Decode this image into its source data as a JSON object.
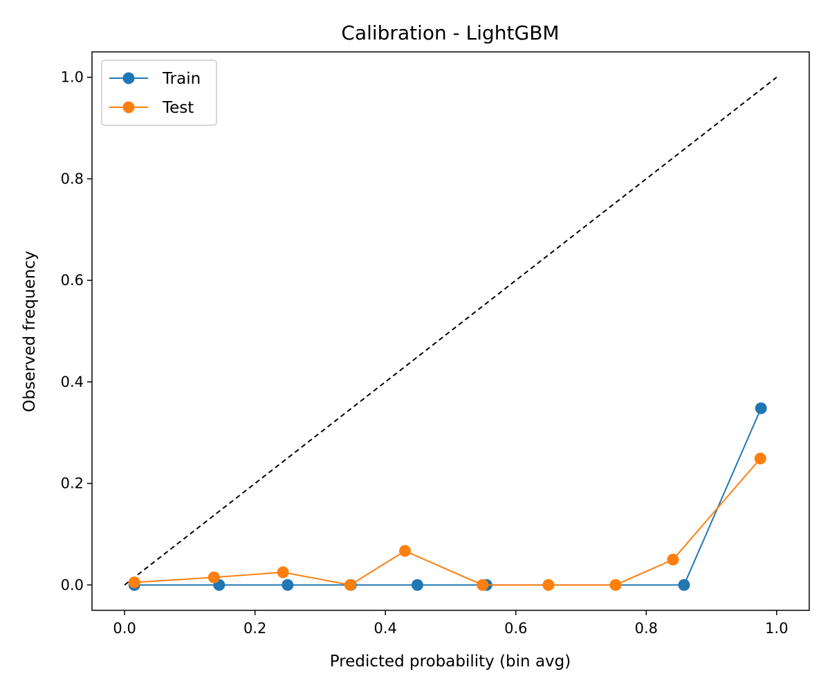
{
  "chart_data": {
    "type": "line",
    "title": "Calibration - LightGBM",
    "xlabel": "Predicted probability (bin avg)",
    "ylabel": "Observed frequency",
    "xlim": [
      -0.05,
      1.05
    ],
    "ylim": [
      -0.05,
      1.05
    ],
    "xticks": [
      0.0,
      0.2,
      0.4,
      0.6,
      0.8,
      1.0
    ],
    "yticks": [
      0.0,
      0.2,
      0.4,
      0.6,
      0.8,
      1.0
    ],
    "xtick_labels": [
      "0.0",
      "0.2",
      "0.4",
      "0.6",
      "0.8",
      "1.0"
    ],
    "ytick_labels": [
      "0.0",
      "0.2",
      "0.4",
      "0.6",
      "0.8",
      "1.0"
    ],
    "grid": false,
    "legend_position": "upper left",
    "reference_line": {
      "x": [
        0,
        1
      ],
      "y": [
        0,
        1
      ],
      "style": "dashed",
      "color": "#000000"
    },
    "series": [
      {
        "name": "Train",
        "color": "#1f77b4",
        "x": [
          0.015,
          0.145,
          0.25,
          0.347,
          0.449,
          0.555,
          0.858,
          0.976
        ],
        "y": [
          0.0,
          0.0,
          0.0,
          0.0,
          0.0,
          0.0,
          0.0,
          0.348
        ]
      },
      {
        "name": "Test",
        "color": "#ff7f0e",
        "x": [
          0.015,
          0.137,
          0.243,
          0.346,
          0.43,
          0.549,
          0.65,
          0.753,
          0.841,
          0.975
        ],
        "y": [
          0.005,
          0.015,
          0.025,
          0.0,
          0.067,
          0.0,
          0.0,
          0.0,
          0.05,
          0.249
        ]
      }
    ]
  }
}
